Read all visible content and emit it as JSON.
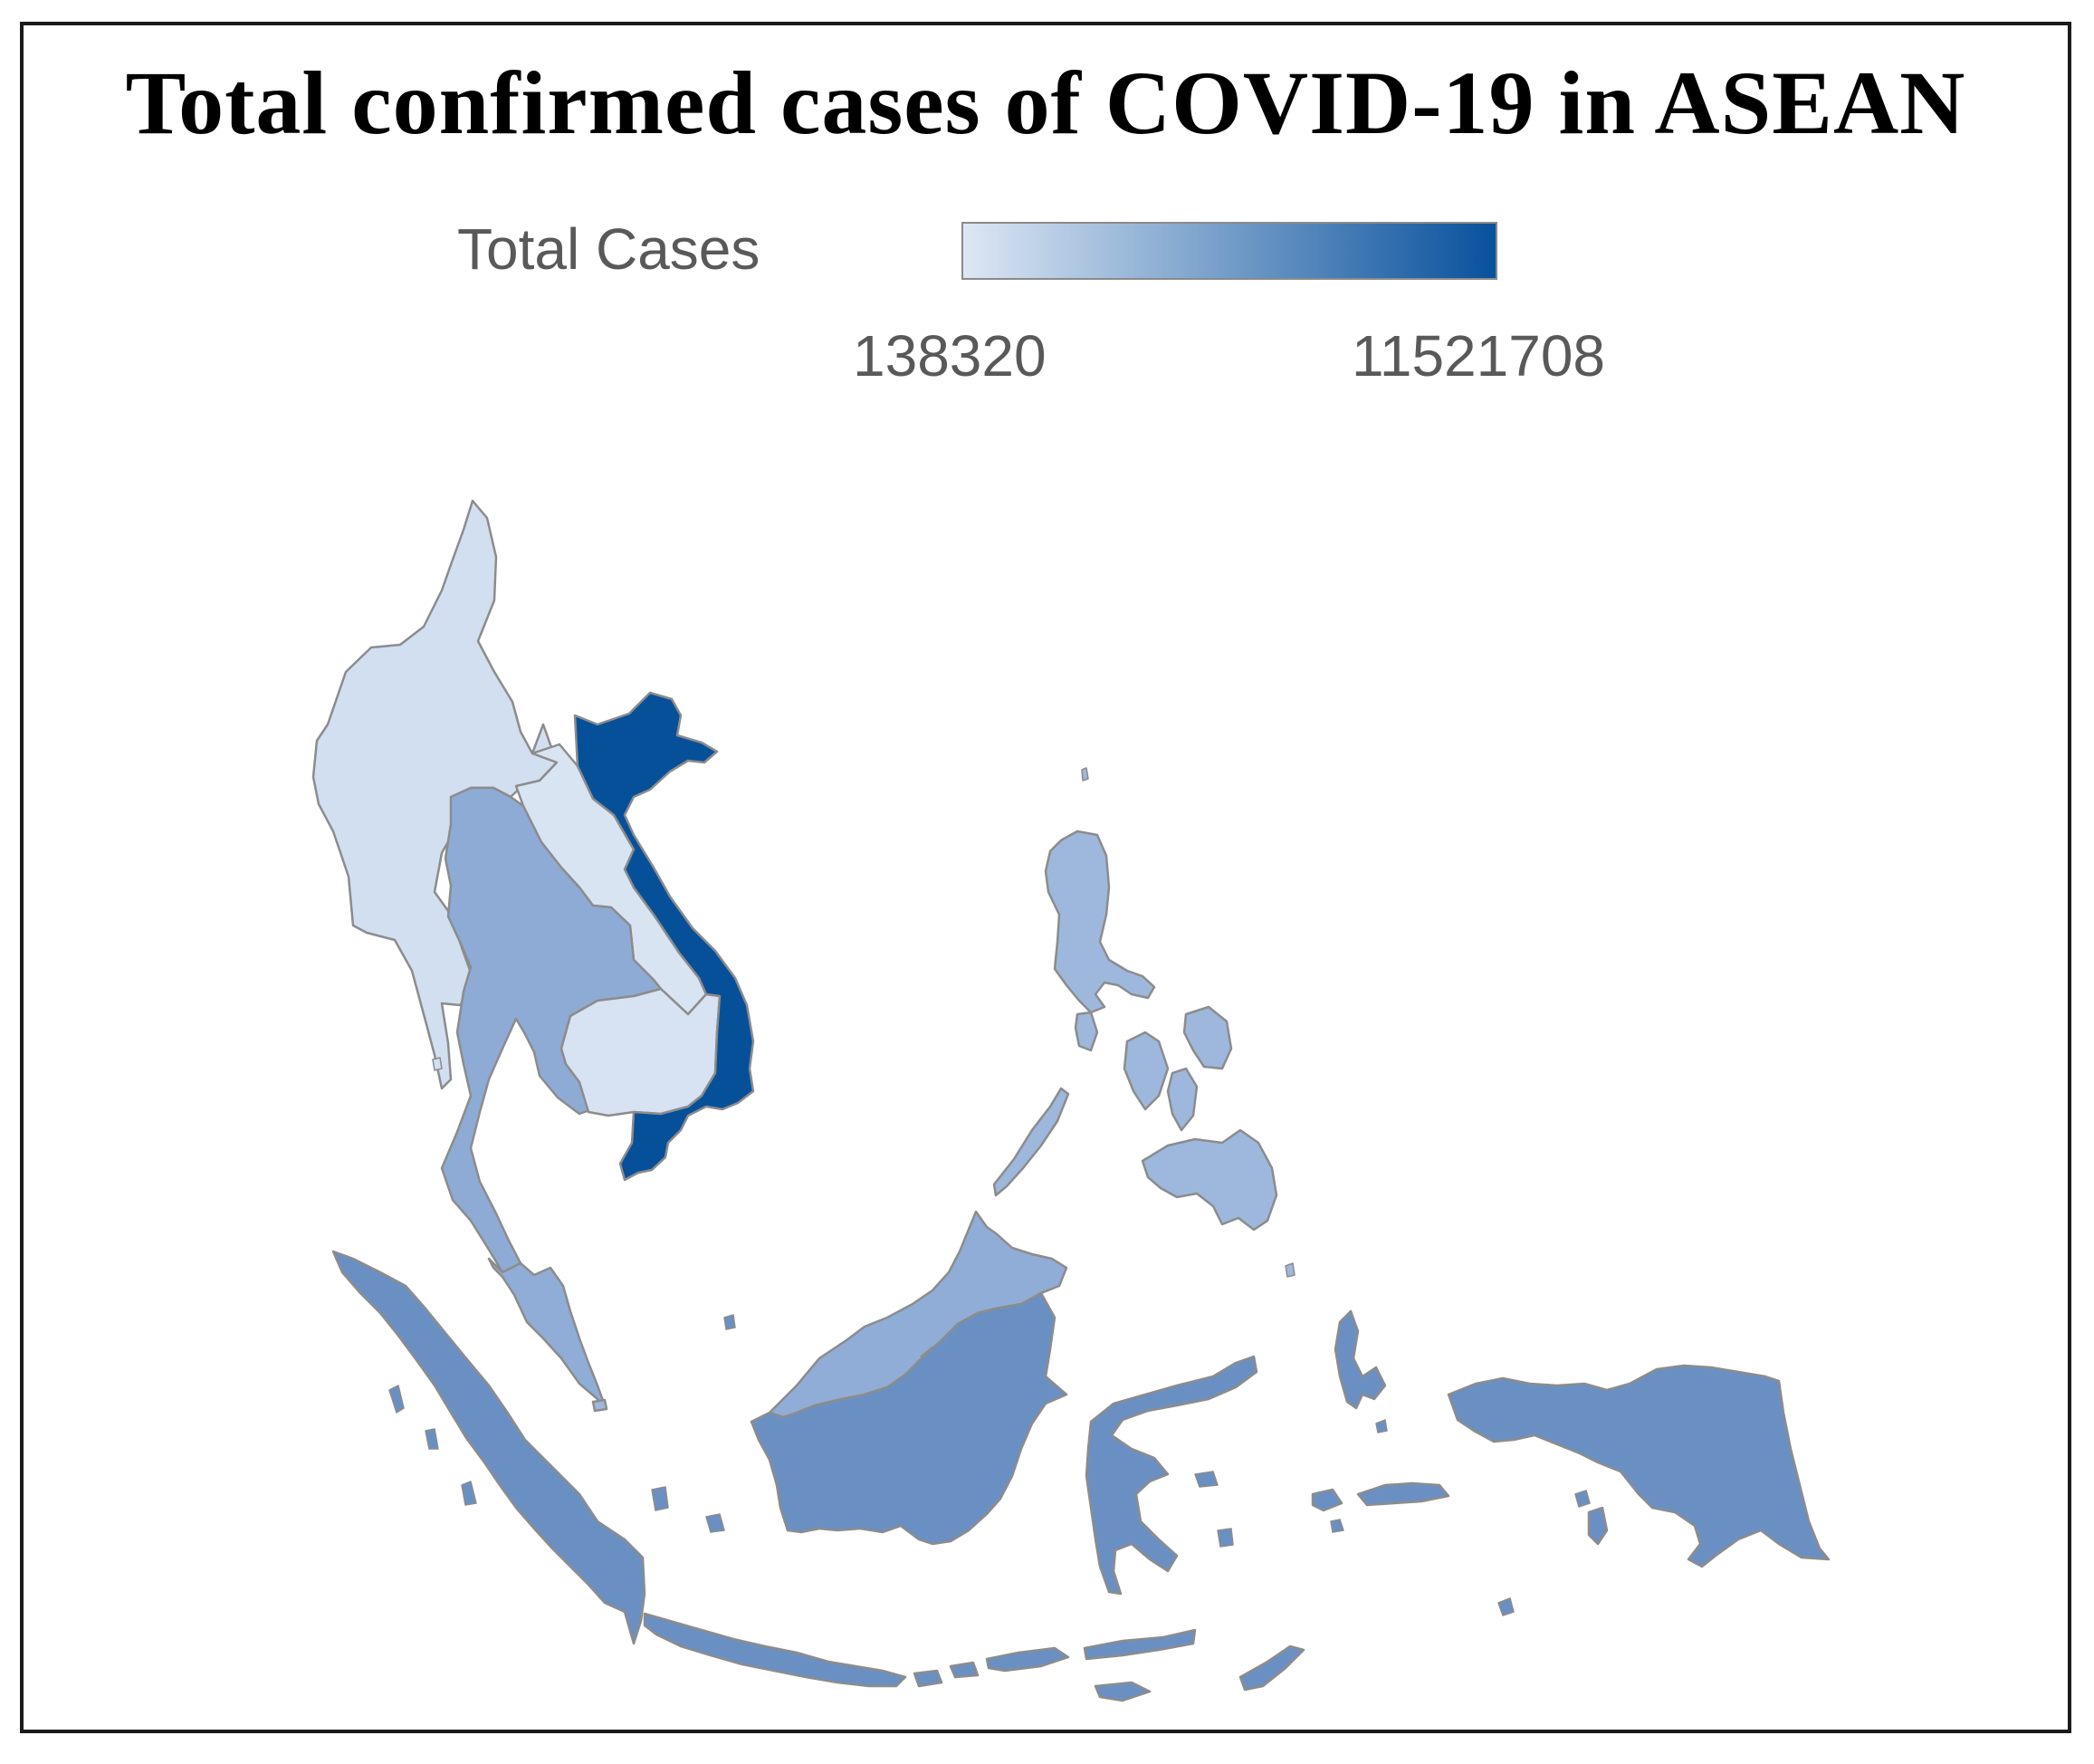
{
  "title": "Total confirmed cases of COVID-19 in ASEAN",
  "legend": {
    "label": "Total Cases",
    "min_label": "138320",
    "max_label": "11521708",
    "min_color": "#dde7f4",
    "max_color": "#08519c"
  },
  "map_data": {
    "type": "choropleth",
    "metric": "Total Cases",
    "scale": "sequential blue",
    "range": [
      138320,
      11521708
    ],
    "regions": [
      {
        "name": "Myanmar",
        "fill": "#d1dff0"
      },
      {
        "name": "Laos",
        "fill": "#d9e4f3"
      },
      {
        "name": "Cambodia",
        "fill": "#d7e3f2"
      },
      {
        "name": "Thailand",
        "fill": "#8eabd5"
      },
      {
        "name": "Vietnam",
        "fill": "#06509a"
      },
      {
        "name": "Malaysia",
        "fill": "#8fadd6"
      },
      {
        "name": "Philippines",
        "fill": "#9db8dc"
      },
      {
        "name": "Indonesia",
        "fill": "#6a90c3"
      },
      {
        "name": "Singapore",
        "fill": "#9db8dc"
      },
      {
        "name": "Brunei",
        "fill": "#8fadd6"
      }
    ]
  }
}
